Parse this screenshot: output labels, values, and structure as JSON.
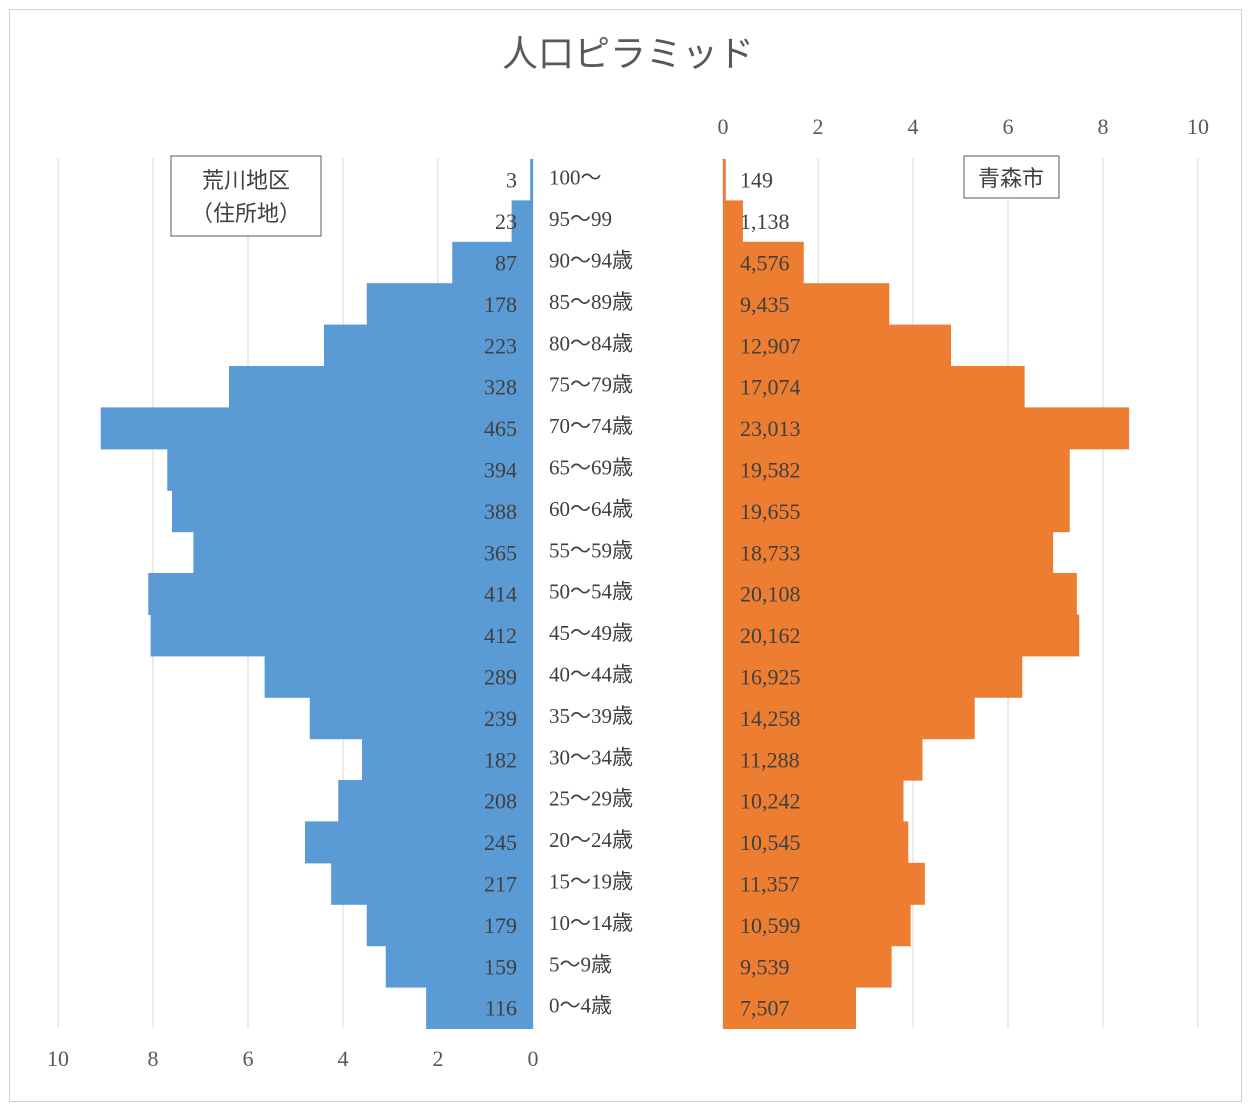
{
  "chart_data": {
    "type": "bar",
    "title": "人口ピラミッド",
    "categories": [
      "100～",
      "95～99",
      "90～94歳",
      "85～89歳",
      "80～84歳",
      "75～79歳",
      "70～74歳",
      "65～69歳",
      "60～64歳",
      "55～59歳",
      "50～54歳",
      "45～49歳",
      "40～44歳",
      "35～39歳",
      "30～34歳",
      "25～29歳",
      "20～24歳",
      "15～19歳",
      "10～14歳",
      "5～9歳",
      "0～4歳"
    ],
    "left_axis_ticks": [
      "10",
      "8",
      "6",
      "4",
      "2",
      "0"
    ],
    "right_axis_ticks": [
      "0",
      "2",
      "4",
      "6",
      "8",
      "10"
    ],
    "xlim": [
      0,
      10
    ],
    "grid": true,
    "series": [
      {
        "name": "荒川地区\n（住所地）",
        "name_lines": [
          "荒川地区",
          "（住所地）"
        ],
        "side": "left",
        "color": "#5B9BD5",
        "labels": [
          "3",
          "23",
          "87",
          "178",
          "223",
          "328",
          "465",
          "394",
          "388",
          "365",
          "414",
          "412",
          "289",
          "239",
          "182",
          "208",
          "245",
          "217",
          "179",
          "159",
          "116"
        ],
        "counts": [
          3,
          23,
          87,
          178,
          223,
          328,
          465,
          394,
          388,
          365,
          414,
          412,
          289,
          239,
          182,
          208,
          245,
          217,
          179,
          159,
          116
        ],
        "percent": [
          0.06,
          0.45,
          1.7,
          3.5,
          4.4,
          6.4,
          9.1,
          7.7,
          7.6,
          7.15,
          8.1,
          8.05,
          5.65,
          4.7,
          3.6,
          4.1,
          4.8,
          4.25,
          3.5,
          3.1,
          2.25
        ]
      },
      {
        "name": "青森市",
        "name_lines": [
          "青森市"
        ],
        "side": "right",
        "color": "#ED7D31",
        "labels": [
          "149",
          "1,138",
          "4,576",
          "9,435",
          "12,907",
          "17,074",
          "23,013",
          "19,582",
          "19,655",
          "18,733",
          "20,108",
          "20,162",
          "16,925",
          "14,258",
          "11,288",
          "10,242",
          "10,545",
          "11,357",
          "10,599",
          "9,539",
          "7,507"
        ],
        "counts": [
          149,
          1138,
          4576,
          9435,
          12907,
          17074,
          23013,
          19582,
          19655,
          18733,
          20108,
          20162,
          16925,
          14258,
          11288,
          10242,
          10545,
          11357,
          10599,
          9539,
          7507
        ],
        "percent": [
          0.06,
          0.42,
          1.7,
          3.5,
          4.8,
          6.35,
          8.55,
          7.3,
          7.3,
          6.95,
          7.45,
          7.5,
          6.3,
          5.3,
          4.2,
          3.8,
          3.9,
          4.25,
          3.95,
          3.55,
          2.8
        ]
      }
    ]
  }
}
